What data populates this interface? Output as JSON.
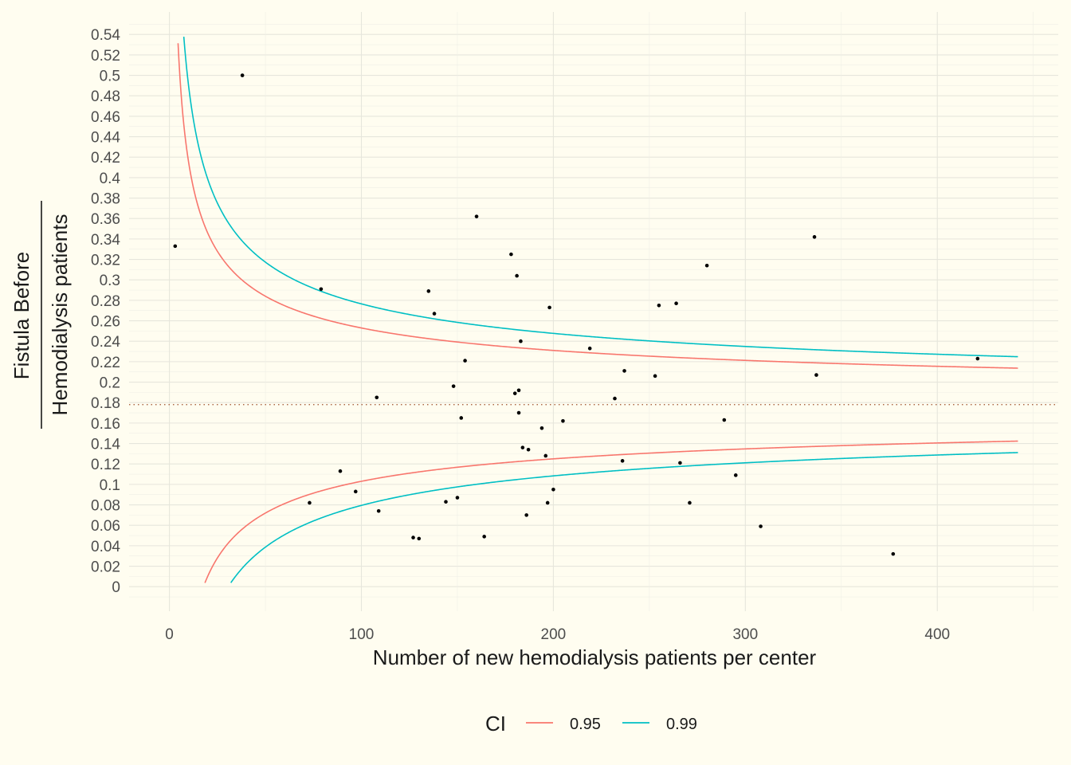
{
  "chart_data": {
    "type": "scatter",
    "title": "",
    "xlabel": "Number of new hemodialysis patients per center",
    "ylabel_top": "Fistula Before",
    "ylabel_bottom": "Hemodialysis patients",
    "xlim": [
      -21,
      463
    ],
    "ylim": [
      -0.024,
      0.562
    ],
    "x_ticks": [
      0,
      100,
      200,
      300,
      400
    ],
    "x_tick_labels": [
      "0",
      "100",
      "200",
      "300",
      "400"
    ],
    "y_ticks": [
      0,
      0.02,
      0.04,
      0.06,
      0.08,
      0.1,
      0.12,
      0.14,
      0.16,
      0.18,
      0.2,
      0.22,
      0.24,
      0.26,
      0.28,
      0.3,
      0.32,
      0.34,
      0.36,
      0.38,
      0.4,
      0.42,
      0.44,
      0.46,
      0.48,
      0.5,
      0.52,
      0.54
    ],
    "y_tick_labels": [
      "0",
      "0.02",
      "0.04",
      "0.06",
      "0.08",
      "0.1",
      "0.12",
      "0.14",
      "0.16",
      "0.18",
      "0.2",
      "0.22",
      "0.24",
      "0.26",
      "0.28",
      "0.3",
      "0.32",
      "0.34",
      "0.36",
      "0.38",
      "0.4",
      "0.42",
      "0.44",
      "0.46",
      "0.48",
      "0.5",
      "0.52",
      "0.54"
    ],
    "reference_line": {
      "y": 0.178,
      "style": "dotted",
      "color": "#A0522D"
    },
    "funnel": {
      "p": 0.178,
      "x_max": 442,
      "y_min": 0.003,
      "y_max": 0.54
    },
    "series": [
      {
        "name": "0.95",
        "z": 1.96,
        "color": "#F8766D"
      },
      {
        "name": "0.99",
        "z": 2.576,
        "color": "#00BFC4"
      }
    ],
    "points": [
      {
        "x": 3,
        "y": 0.333
      },
      {
        "x": 38,
        "y": 0.5
      },
      {
        "x": 73,
        "y": 0.082
      },
      {
        "x": 79,
        "y": 0.291
      },
      {
        "x": 89,
        "y": 0.113
      },
      {
        "x": 97,
        "y": 0.093
      },
      {
        "x": 108,
        "y": 0.185
      },
      {
        "x": 109,
        "y": 0.074
      },
      {
        "x": 127,
        "y": 0.048
      },
      {
        "x": 130,
        "y": 0.047
      },
      {
        "x": 135,
        "y": 0.289
      },
      {
        "x": 138,
        "y": 0.267
      },
      {
        "x": 144,
        "y": 0.083
      },
      {
        "x": 148,
        "y": 0.196
      },
      {
        "x": 150,
        "y": 0.087
      },
      {
        "x": 152,
        "y": 0.165
      },
      {
        "x": 154,
        "y": 0.221
      },
      {
        "x": 160,
        "y": 0.362
      },
      {
        "x": 164,
        "y": 0.049
      },
      {
        "x": 178,
        "y": 0.325
      },
      {
        "x": 180,
        "y": 0.189
      },
      {
        "x": 181,
        "y": 0.304
      },
      {
        "x": 182,
        "y": 0.192
      },
      {
        "x": 182,
        "y": 0.17
      },
      {
        "x": 183,
        "y": 0.24
      },
      {
        "x": 184,
        "y": 0.136
      },
      {
        "x": 186,
        "y": 0.07
      },
      {
        "x": 187,
        "y": 0.134
      },
      {
        "x": 194,
        "y": 0.155
      },
      {
        "x": 196,
        "y": 0.128
      },
      {
        "x": 197,
        "y": 0.082
      },
      {
        "x": 198,
        "y": 0.273
      },
      {
        "x": 200,
        "y": 0.095
      },
      {
        "x": 205,
        "y": 0.162
      },
      {
        "x": 219,
        "y": 0.233
      },
      {
        "x": 232,
        "y": 0.184
      },
      {
        "x": 236,
        "y": 0.123
      },
      {
        "x": 237,
        "y": 0.211
      },
      {
        "x": 253,
        "y": 0.206
      },
      {
        "x": 255,
        "y": 0.275
      },
      {
        "x": 264,
        "y": 0.277
      },
      {
        "x": 266,
        "y": 0.121
      },
      {
        "x": 271,
        "y": 0.082
      },
      {
        "x": 280,
        "y": 0.314
      },
      {
        "x": 289,
        "y": 0.163
      },
      {
        "x": 295,
        "y": 0.109
      },
      {
        "x": 308,
        "y": 0.059
      },
      {
        "x": 336,
        "y": 0.342
      },
      {
        "x": 337,
        "y": 0.207
      },
      {
        "x": 377,
        "y": 0.032
      },
      {
        "x": 421,
        "y": 0.223
      }
    ]
  },
  "legend": {
    "title": "CI",
    "items": [
      {
        "label": "0.95",
        "color": "#F8766D"
      },
      {
        "label": "0.99",
        "color": "#00BFC4"
      }
    ]
  }
}
